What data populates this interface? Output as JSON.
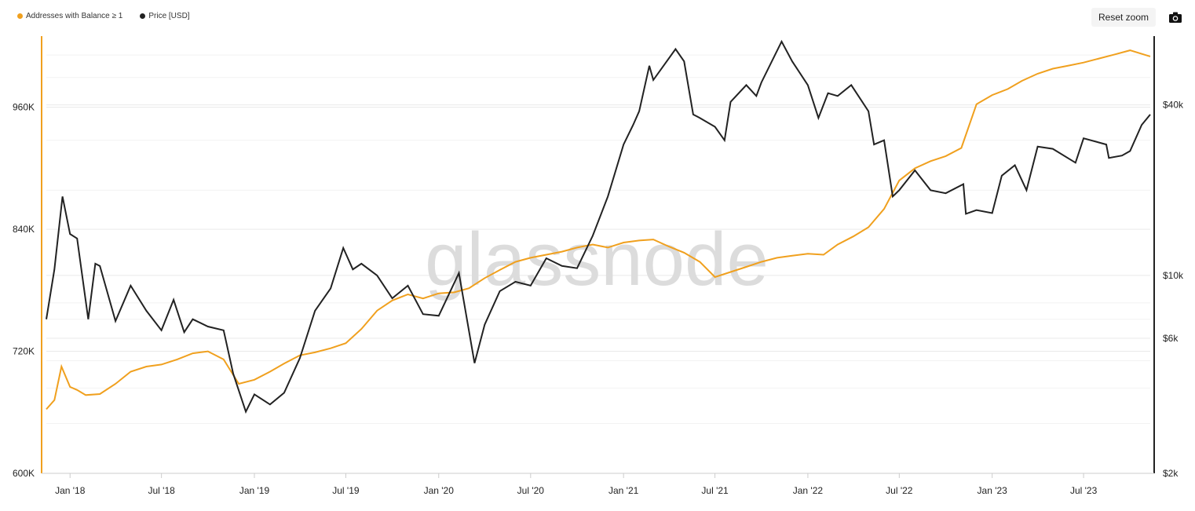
{
  "legend": {
    "series1": "Addresses with Balance ≥ 1",
    "series2": "Price [USD]"
  },
  "toolbar": {
    "reset_label": "Reset zoom",
    "camera_icon": "camera-icon"
  },
  "watermark": "glassnode",
  "colors": {
    "addresses": "#f0a01e",
    "price": "#222222",
    "grid": "#e9e9e9"
  },
  "chart_data": {
    "type": "line",
    "x_ticks": [
      "Jan '18",
      "Jul '18",
      "Jan '19",
      "Jul '19",
      "Jan '20",
      "Jul '20",
      "Jan '21",
      "Jul '21",
      "Jan '22",
      "Jul '22",
      "Jan '23",
      "Jul '23"
    ],
    "y_left_ticks": [
      "600K",
      "720K",
      "840K",
      "960K"
    ],
    "y_right_ticks": [
      "$2k",
      "$6k",
      "$10k",
      "$40k"
    ],
    "ylim_left": [
      600000,
      1030000
    ],
    "y_right_scale": "log",
    "ylim_right": [
      2000,
      70000
    ],
    "x_range": [
      "2017-11-15",
      "2023-11-10"
    ],
    "grid": true,
    "legend_position": "top-left",
    "series": [
      {
        "name": "Addresses with Balance ≥ 1",
        "axis": "left",
        "points": [
          [
            "2017-11-15",
            663000
          ],
          [
            "2017-12-01",
            672000
          ],
          [
            "2017-12-15",
            705000
          ],
          [
            "2018-01-01",
            685000
          ],
          [
            "2018-01-15",
            682000
          ],
          [
            "2018-02-01",
            677000
          ],
          [
            "2018-03-01",
            678000
          ],
          [
            "2018-04-01",
            688000
          ],
          [
            "2018-05-01",
            700000
          ],
          [
            "2018-06-01",
            705000
          ],
          [
            "2018-07-01",
            707000
          ],
          [
            "2018-08-01",
            712000
          ],
          [
            "2018-09-01",
            718000
          ],
          [
            "2018-10-01",
            720000
          ],
          [
            "2018-11-01",
            712000
          ],
          [
            "2018-12-01",
            688000
          ],
          [
            "2019-01-01",
            692000
          ],
          [
            "2019-02-01",
            700000
          ],
          [
            "2019-03-01",
            708000
          ],
          [
            "2019-04-01",
            716000
          ],
          [
            "2019-05-01",
            719000
          ],
          [
            "2019-06-01",
            723000
          ],
          [
            "2019-07-01",
            728000
          ],
          [
            "2019-08-01",
            742000
          ],
          [
            "2019-09-01",
            760000
          ],
          [
            "2019-10-01",
            770000
          ],
          [
            "2019-11-01",
            776000
          ],
          [
            "2019-12-01",
            772000
          ],
          [
            "2020-01-01",
            777000
          ],
          [
            "2020-02-01",
            778000
          ],
          [
            "2020-03-01",
            782000
          ],
          [
            "2020-04-01",
            792000
          ],
          [
            "2020-05-01",
            800000
          ],
          [
            "2020-06-01",
            808000
          ],
          [
            "2020-07-01",
            812000
          ],
          [
            "2020-08-01",
            815000
          ],
          [
            "2020-09-01",
            818000
          ],
          [
            "2020-10-01",
            822000
          ],
          [
            "2020-11-01",
            825000
          ],
          [
            "2020-12-01",
            822000
          ],
          [
            "2021-01-01",
            827000
          ],
          [
            "2021-02-01",
            829000
          ],
          [
            "2021-03-01",
            830000
          ],
          [
            "2021-04-01",
            823000
          ],
          [
            "2021-05-01",
            817000
          ],
          [
            "2021-06-01",
            808000
          ],
          [
            "2021-07-01",
            793000
          ],
          [
            "2021-08-01",
            798000
          ],
          [
            "2021-09-01",
            803000
          ],
          [
            "2021-10-01",
            808000
          ],
          [
            "2021-11-01",
            812000
          ],
          [
            "2021-12-01",
            814000
          ],
          [
            "2022-01-01",
            816000
          ],
          [
            "2022-02-01",
            815000
          ],
          [
            "2022-03-01",
            825000
          ],
          [
            "2022-04-01",
            833000
          ],
          [
            "2022-05-01",
            842000
          ],
          [
            "2022-06-01",
            860000
          ],
          [
            "2022-07-01",
            888000
          ],
          [
            "2022-08-01",
            900000
          ],
          [
            "2022-09-01",
            907000
          ],
          [
            "2022-10-01",
            912000
          ],
          [
            "2022-11-01",
            920000
          ],
          [
            "2022-12-01",
            963000
          ],
          [
            "2023-01-01",
            972000
          ],
          [
            "2023-02-01",
            978000
          ],
          [
            "2023-03-01",
            986000
          ],
          [
            "2023-04-01",
            993000
          ],
          [
            "2023-05-01",
            998000
          ],
          [
            "2023-06-01",
            1001000
          ],
          [
            "2023-07-01",
            1004000
          ],
          [
            "2023-08-01",
            1008000
          ],
          [
            "2023-09-01",
            1012000
          ],
          [
            "2023-10-01",
            1016000
          ],
          [
            "2023-11-10",
            1010000
          ]
        ]
      },
      {
        "name": "Price [USD]",
        "axis": "right",
        "points": [
          [
            "2017-11-15",
            7000
          ],
          [
            "2017-12-01",
            10500
          ],
          [
            "2017-12-17",
            19000
          ],
          [
            "2018-01-01",
            14000
          ],
          [
            "2018-01-15",
            13500
          ],
          [
            "2018-02-06",
            7000
          ],
          [
            "2018-02-20",
            11000
          ],
          [
            "2018-03-01",
            10800
          ],
          [
            "2018-04-01",
            6900
          ],
          [
            "2018-05-01",
            9200
          ],
          [
            "2018-06-01",
            7500
          ],
          [
            "2018-07-01",
            6400
          ],
          [
            "2018-07-25",
            8200
          ],
          [
            "2018-08-15",
            6300
          ],
          [
            "2018-09-01",
            7000
          ],
          [
            "2018-10-01",
            6600
          ],
          [
            "2018-11-01",
            6400
          ],
          [
            "2018-11-20",
            4500
          ],
          [
            "2018-12-15",
            3300
          ],
          [
            "2019-01-01",
            3800
          ],
          [
            "2019-02-01",
            3500
          ],
          [
            "2019-03-01",
            3850
          ],
          [
            "2019-04-01",
            5100
          ],
          [
            "2019-05-01",
            7500
          ],
          [
            "2019-06-01",
            9000
          ],
          [
            "2019-06-26",
            12500
          ],
          [
            "2019-07-15",
            10500
          ],
          [
            "2019-08-01",
            11000
          ],
          [
            "2019-09-01",
            10000
          ],
          [
            "2019-10-01",
            8300
          ],
          [
            "2019-11-01",
            9200
          ],
          [
            "2019-12-01",
            7300
          ],
          [
            "2020-01-01",
            7200
          ],
          [
            "2020-02-10",
            10200
          ],
          [
            "2020-03-12",
            4900
          ],
          [
            "2020-04-01",
            6700
          ],
          [
            "2020-05-01",
            8800
          ],
          [
            "2020-06-01",
            9500
          ],
          [
            "2020-07-01",
            9200
          ],
          [
            "2020-08-01",
            11500
          ],
          [
            "2020-09-01",
            10800
          ],
          [
            "2020-10-01",
            10600
          ],
          [
            "2020-11-01",
            13800
          ],
          [
            "2020-12-01",
            19000
          ],
          [
            "2021-01-01",
            29000
          ],
          [
            "2021-01-20",
            34000
          ],
          [
            "2021-02-01",
            38000
          ],
          [
            "2021-02-21",
            55000
          ],
          [
            "2021-03-01",
            49000
          ],
          [
            "2021-04-14",
            63000
          ],
          [
            "2021-05-01",
            57000
          ],
          [
            "2021-05-19",
            37000
          ],
          [
            "2021-06-01",
            36000
          ],
          [
            "2021-07-01",
            33500
          ],
          [
            "2021-07-20",
            30000
          ],
          [
            "2021-08-01",
            41000
          ],
          [
            "2021-09-01",
            47000
          ],
          [
            "2021-09-21",
            43000
          ],
          [
            "2021-10-01",
            48000
          ],
          [
            "2021-11-10",
            67000
          ],
          [
            "2021-12-01",
            57000
          ],
          [
            "2022-01-01",
            47000
          ],
          [
            "2022-01-22",
            36000
          ],
          [
            "2022-02-10",
            44000
          ],
          [
            "2022-03-01",
            43000
          ],
          [
            "2022-03-28",
            47000
          ],
          [
            "2022-05-01",
            38000
          ],
          [
            "2022-05-12",
            29000
          ],
          [
            "2022-06-01",
            30000
          ],
          [
            "2022-06-18",
            19000
          ],
          [
            "2022-07-01",
            20000
          ],
          [
            "2022-08-01",
            23500
          ],
          [
            "2022-09-01",
            20000
          ],
          [
            "2022-10-01",
            19500
          ],
          [
            "2022-11-05",
            21000
          ],
          [
            "2022-11-10",
            16500
          ],
          [
            "2022-12-01",
            17000
          ],
          [
            "2023-01-01",
            16600
          ],
          [
            "2023-01-20",
            22500
          ],
          [
            "2023-02-15",
            24500
          ],
          [
            "2023-03-10",
            20000
          ],
          [
            "2023-04-01",
            28500
          ],
          [
            "2023-05-01",
            28000
          ],
          [
            "2023-06-15",
            25000
          ],
          [
            "2023-07-01",
            30500
          ],
          [
            "2023-08-15",
            29000
          ],
          [
            "2023-08-20",
            26000
          ],
          [
            "2023-09-15",
            26500
          ],
          [
            "2023-10-01",
            27500
          ],
          [
            "2023-10-24",
            34000
          ],
          [
            "2023-11-10",
            37000
          ]
        ]
      }
    ]
  }
}
